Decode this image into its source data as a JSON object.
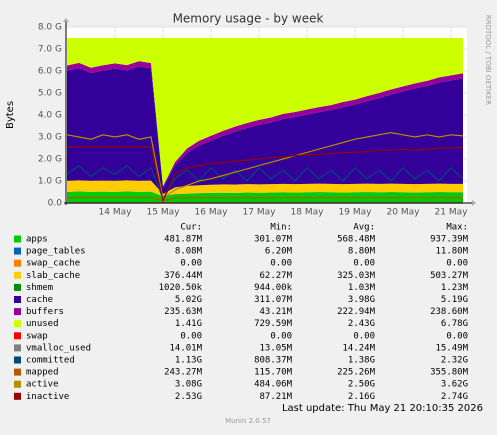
{
  "chart_data": {
    "type": "area",
    "title": "Memory usage - by week",
    "y_label": "Bytes",
    "side_text": "RRDTOOL / TOBI OETIKER",
    "footer": "Last update: Thu May 21 20:10:35 2026",
    "version": "Munin 2.0.57",
    "stat_headers": [
      "Cur:",
      "Min:",
      "Avg:",
      "Max:"
    ],
    "categories": [
      null,
      null,
      null,
      null,
      "14 May",
      null,
      null,
      null,
      "15 May",
      null,
      null,
      null,
      "16 May",
      null,
      null,
      null,
      "17 May",
      null,
      null,
      null,
      "18 May",
      null,
      null,
      null,
      "19 May",
      null,
      null,
      null,
      "20 May",
      null,
      null,
      null,
      "21 May",
      null
    ],
    "ylim": [
      0,
      8
    ],
    "yticks": [
      {
        "value": 0,
        "label": "0.0"
      },
      {
        "value": 1,
        "label": "1.0 G"
      },
      {
        "value": 2,
        "label": "2.0 G"
      },
      {
        "value": 3,
        "label": "3.0 G"
      },
      {
        "value": 4,
        "label": "4.0 G"
      },
      {
        "value": 5,
        "label": "5.0 G"
      },
      {
        "value": 6,
        "label": "6.0 G"
      },
      {
        "value": 7,
        "label": "7.0 G"
      },
      {
        "value": 8,
        "label": "8.0 G"
      }
    ],
    "grid": true,
    "series": [
      {
        "name": "apps",
        "color": "#00cc00",
        "stack": true,
        "stats": [
          "481.87M",
          "301.07M",
          "568.48M",
          "937.39M"
        ],
        "values": [
          0.5,
          0.52,
          0.5,
          0.51,
          0.5,
          0.52,
          0.5,
          0.51,
          0.3,
          0.4,
          0.42,
          0.44,
          0.45,
          0.46,
          0.45,
          0.47,
          0.46,
          0.47,
          0.48,
          0.47,
          0.48,
          0.49,
          0.48,
          0.47,
          0.48,
          0.49,
          0.48,
          0.49,
          0.48,
          0.47,
          0.48,
          0.49,
          0.48,
          0.48
        ]
      },
      {
        "name": "page_tables",
        "color": "#0066b3",
        "stack": true,
        "stats": [
          "8.08M",
          "6.20M",
          "8.80M",
          "11.80M"
        ],
        "values": [
          0.008,
          0.008,
          0.008,
          0.008,
          0.008,
          0.008,
          0.008,
          0.008,
          0.008,
          0.008,
          0.008,
          0.008,
          0.008,
          0.008,
          0.008,
          0.008,
          0.008,
          0.008,
          0.008,
          0.008,
          0.008,
          0.008,
          0.008,
          0.008,
          0.008,
          0.008,
          0.008,
          0.008,
          0.008,
          0.008,
          0.008,
          0.008,
          0.008,
          0.008
        ]
      },
      {
        "name": "swap_cache",
        "color": "#ff8000",
        "stack": true,
        "stats": [
          "0.00",
          "0.00",
          "0.00",
          "0.00"
        ],
        "values": [
          0,
          0,
          0,
          0,
          0,
          0,
          0,
          0,
          0,
          0,
          0,
          0,
          0,
          0,
          0,
          0,
          0,
          0,
          0,
          0,
          0,
          0,
          0,
          0,
          0,
          0,
          0,
          0,
          0,
          0,
          0,
          0,
          0,
          0
        ]
      },
      {
        "name": "slab_cache",
        "color": "#ffcc00",
        "stack": true,
        "stats": [
          "376.44M",
          "62.27M",
          "325.03M",
          "503.27M"
        ],
        "values": [
          0.5,
          0.5,
          0.5,
          0.5,
          0.5,
          0.5,
          0.5,
          0.5,
          0.1,
          0.3,
          0.35,
          0.36,
          0.37,
          0.38,
          0.38,
          0.38,
          0.38,
          0.38,
          0.38,
          0.38,
          0.38,
          0.38,
          0.38,
          0.38,
          0.38,
          0.38,
          0.38,
          0.38,
          0.38,
          0.38,
          0.38,
          0.38,
          0.38,
          0.38
        ]
      },
      {
        "name": "shmem",
        "color": "#008f00",
        "stack": true,
        "stats": [
          "1020.50k",
          "944.00k",
          "1.03M",
          "1.23M"
        ],
        "values": [
          0.001,
          0.001,
          0.001,
          0.001,
          0.001,
          0.001,
          0.001,
          0.001,
          0.001,
          0.001,
          0.001,
          0.001,
          0.001,
          0.001,
          0.001,
          0.001,
          0.001,
          0.001,
          0.001,
          0.001,
          0.001,
          0.001,
          0.001,
          0.001,
          0.001,
          0.001,
          0.001,
          0.001,
          0.001,
          0.001,
          0.001,
          0.001,
          0.001,
          0.001
        ]
      },
      {
        "name": "cache",
        "color": "#330099",
        "stack": true,
        "stats": [
          "5.02G",
          "311.07M",
          "3.98G",
          "5.19G"
        ],
        "values": [
          5.0,
          5.1,
          4.9,
          5.0,
          5.1,
          5.0,
          5.2,
          5.1,
          0.3,
          1.0,
          1.5,
          1.8,
          2.0,
          2.2,
          2.4,
          2.55,
          2.7,
          2.8,
          2.95,
          3.05,
          3.15,
          3.25,
          3.35,
          3.5,
          3.6,
          3.75,
          3.9,
          4.05,
          4.2,
          4.35,
          4.45,
          4.6,
          4.7,
          4.8
        ]
      },
      {
        "name": "buffers",
        "color": "#990099",
        "stack": true,
        "stats": [
          "235.63M",
          "43.21M",
          "222.94M",
          "238.60M"
        ],
        "values": [
          0.24,
          0.24,
          0.24,
          0.24,
          0.24,
          0.24,
          0.24,
          0.24,
          0.05,
          0.15,
          0.2,
          0.22,
          0.23,
          0.23,
          0.23,
          0.23,
          0.23,
          0.23,
          0.23,
          0.23,
          0.23,
          0.23,
          0.23,
          0.23,
          0.23,
          0.23,
          0.23,
          0.23,
          0.23,
          0.23,
          0.23,
          0.23,
          0.23,
          0.23
        ]
      },
      {
        "name": "unused",
        "color": "#ccff00",
        "stack": true,
        "stats": [
          "1.41G",
          "729.59M",
          "2.43G",
          "6.78G"
        ],
        "values": [
          1.251,
          1.131,
          1.351,
          1.241,
          1.151,
          1.231,
          1.051,
          1.141,
          6.741,
          5.641,
          5.021,
          4.671,
          4.441,
          4.221,
          4.031,
          3.861,
          3.721,
          3.611,
          3.451,
          3.361,
          3.251,
          3.141,
          3.051,
          2.911,
          2.801,
          2.641,
          2.501,
          2.341,
          2.201,
          2.061,
          1.951,
          1.791,
          1.701,
          1.601
        ]
      },
      {
        "name": "swap",
        "color": "#ff0000",
        "stack": false,
        "stats": [
          "0.00",
          "0.00",
          "0.00",
          "0.00"
        ],
        "values": [
          0,
          0,
          0,
          0,
          0,
          0,
          0,
          0,
          0,
          0,
          0,
          0,
          0,
          0,
          0,
          0,
          0,
          0,
          0,
          0,
          0,
          0,
          0,
          0,
          0,
          0,
          0,
          0,
          0,
          0,
          0,
          0,
          0,
          0
        ]
      },
      {
        "name": "vmalloc_used",
        "color": "#808080",
        "stack": false,
        "stats": [
          "14.01M",
          "13.05M",
          "14.24M",
          "15.49M"
        ],
        "values": [
          0.014,
          0.014,
          0.014,
          0.014,
          0.014,
          0.014,
          0.014,
          0.014,
          0.014,
          0.014,
          0.014,
          0.014,
          0.014,
          0.014,
          0.014,
          0.014,
          0.014,
          0.014,
          0.014,
          0.014,
          0.014,
          0.014,
          0.014,
          0.014,
          0.014,
          0.014,
          0.014,
          0.014,
          0.014,
          0.014,
          0.014,
          0.014,
          0.014,
          0.014
        ]
      },
      {
        "name": "committed",
        "color": "#00487d",
        "stack": false,
        "stats": [
          "1.13G",
          "808.37M",
          "1.38G",
          "2.32G"
        ],
        "values": [
          1.3,
          1.7,
          1.2,
          1.6,
          1.3,
          1.7,
          1.2,
          1.6,
          0.2,
          1.1,
          1.5,
          1.0,
          1.6,
          1.1,
          1.5,
          1.0,
          1.6,
          1.1,
          1.5,
          1.0,
          1.6,
          1.1,
          1.5,
          1.0,
          1.6,
          1.1,
          1.5,
          1.0,
          1.6,
          1.1,
          1.5,
          1.0,
          1.6,
          1.1
        ]
      },
      {
        "name": "mapped",
        "color": "#b35a00",
        "stack": false,
        "stats": [
          "243.27M",
          "115.70M",
          "225.26M",
          "355.80M"
        ],
        "values": [
          0.25,
          0.25,
          0.25,
          0.25,
          0.25,
          0.25,
          0.25,
          0.25,
          0.1,
          0.24,
          0.24,
          0.24,
          0.24,
          0.24,
          0.24,
          0.24,
          0.24,
          0.24,
          0.24,
          0.24,
          0.24,
          0.24,
          0.24,
          0.24,
          0.24,
          0.24,
          0.24,
          0.24,
          0.24,
          0.24,
          0.24,
          0.24,
          0.24,
          0.24
        ]
      },
      {
        "name": "active",
        "color": "#b38f00",
        "stack": false,
        "stats": [
          "3.08G",
          "484.06M",
          "2.50G",
          "3.62G"
        ],
        "values": [
          3.1,
          3.0,
          2.9,
          3.1,
          3.0,
          3.1,
          2.9,
          3.0,
          0.2,
          0.6,
          0.8,
          1.0,
          1.1,
          1.25,
          1.4,
          1.55,
          1.7,
          1.85,
          2.0,
          2.15,
          2.3,
          2.45,
          2.6,
          2.75,
          2.9,
          3.0,
          3.1,
          3.2,
          3.1,
          3.0,
          3.1,
          3.0,
          3.1,
          3.05
        ]
      },
      {
        "name": "inactive",
        "color": "#990000",
        "stack": false,
        "stats": [
          "2.53G",
          "87.21M",
          "2.16G",
          "2.74G"
        ],
        "values": [
          2.55,
          2.55,
          2.55,
          2.55,
          2.55,
          2.55,
          2.55,
          2.55,
          0.1,
          1.3,
          1.6,
          1.7,
          1.8,
          1.85,
          1.9,
          1.95,
          2.0,
          2.05,
          2.1,
          2.15,
          2.2,
          2.2,
          2.25,
          2.3,
          2.3,
          2.35,
          2.4,
          2.4,
          2.45,
          2.4,
          2.45,
          2.5,
          2.5,
          2.53
        ]
      }
    ]
  }
}
